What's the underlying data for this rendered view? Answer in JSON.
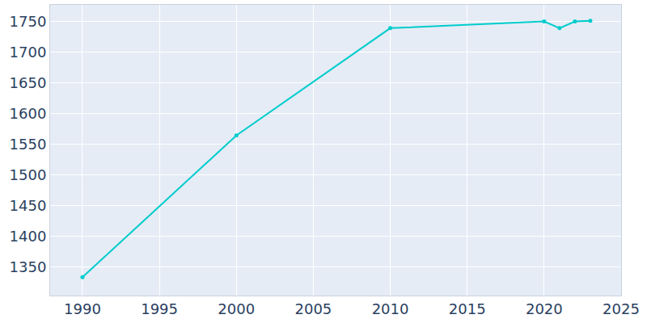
{
  "chart_data": {
    "type": "line",
    "x": [
      1990,
      2000,
      2010,
      2020,
      2021,
      2022,
      2023
    ],
    "values": [
      1333,
      1564,
      1739,
      1750,
      1739,
      1750,
      1751
    ],
    "color": "#00cccc",
    "marker": "circle",
    "xlim": [
      1987.9,
      2025
    ],
    "xticks": [
      1990,
      1995,
      2000,
      2005,
      2010,
      2015,
      2020,
      2025
    ],
    "ylim": [
      1303,
      1777
    ],
    "yticks": [
      1350,
      1400,
      1450,
      1500,
      1550,
      1600,
      1650,
      1700,
      1750
    ],
    "grid": true
  }
}
